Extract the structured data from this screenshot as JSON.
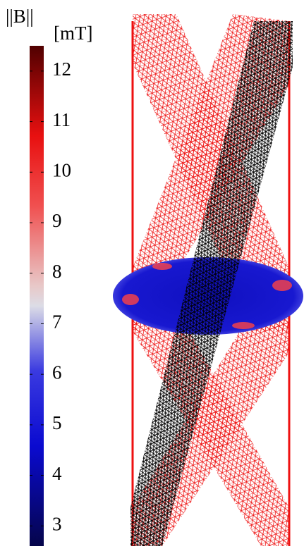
{
  "chart_data": {
    "type": "colorbar",
    "title": "||B||",
    "unit": "[mT]",
    "vlim": [
      2.6,
      12.5
    ],
    "ticks": [
      3,
      4,
      5,
      6,
      7,
      8,
      9,
      10,
      11,
      12
    ]
  }
}
